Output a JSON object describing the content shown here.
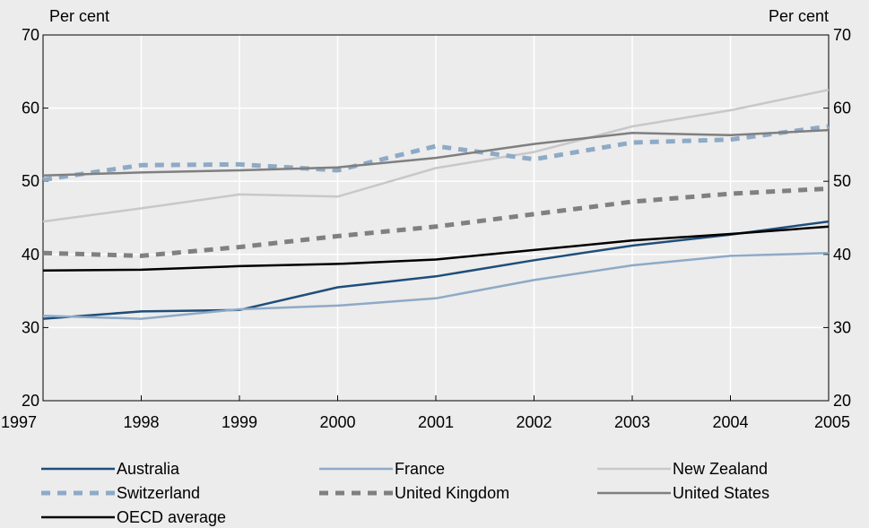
{
  "chart_data": {
    "type": "line",
    "ylabel_left": "Per cent",
    "ylabel_right": "Per cent",
    "x": [
      "1997",
      "1998",
      "1999",
      "2000",
      "2001",
      "2002",
      "2003",
      "2004",
      "2005"
    ],
    "ylim": [
      20,
      70
    ],
    "yticks": [
      20,
      30,
      40,
      50,
      60,
      70
    ],
    "grid": true,
    "legend_position": "bottom",
    "series": [
      {
        "name": "Australia",
        "color": "#1f4e79",
        "dash": false,
        "values": [
          31.2,
          32.2,
          32.4,
          35.5,
          37.0,
          39.2,
          41.2,
          42.7,
          44.5
        ]
      },
      {
        "name": "France",
        "color": "#8eaac6",
        "dash": false,
        "values": [
          31.6,
          31.2,
          32.5,
          33.0,
          34.0,
          36.5,
          38.5,
          39.8,
          40.2
        ]
      },
      {
        "name": "New Zealand",
        "color": "#c8c8c8",
        "dash": false,
        "values": [
          44.5,
          46.3,
          48.2,
          47.9,
          51.8,
          54.0,
          57.5,
          59.7,
          62.5
        ]
      },
      {
        "name": "Switzerland",
        "color": "#8eaac6",
        "dash": true,
        "values": [
          50.2,
          52.2,
          52.3,
          51.5,
          54.8,
          53.0,
          55.3,
          55.7,
          57.5
        ]
      },
      {
        "name": "United Kingdom",
        "color": "#808080",
        "dash": true,
        "values": [
          40.2,
          39.8,
          41.0,
          42.5,
          43.8,
          45.5,
          47.2,
          48.3,
          49.0
        ]
      },
      {
        "name": "United States",
        "color": "#7f7f7f",
        "dash": false,
        "values": [
          50.8,
          51.2,
          51.5,
          51.9,
          53.2,
          55.1,
          56.6,
          56.3,
          57.0
        ]
      },
      {
        "name": "OECD average",
        "color": "#000000",
        "dash": false,
        "values": [
          37.8,
          37.9,
          38.4,
          38.7,
          39.3,
          40.6,
          41.9,
          42.8,
          43.8
        ]
      }
    ]
  }
}
